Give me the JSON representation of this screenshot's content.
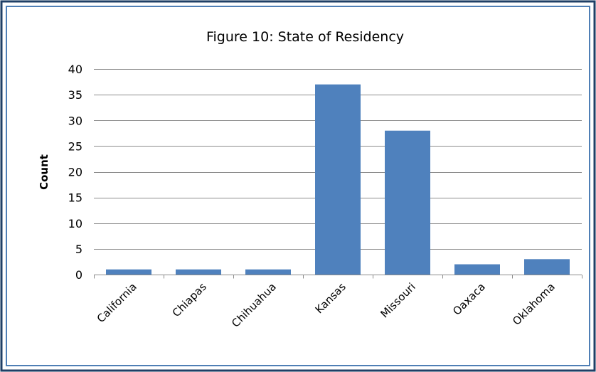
{
  "chart_data": {
    "type": "bar",
    "title": "Figure 10: State of Residency",
    "xlabel": "",
    "ylabel": "Count",
    "categories": [
      "California",
      "Chiapas",
      "Chihuahua",
      "Kansas",
      "Missouri",
      "Oaxaca",
      "Oklahoma"
    ],
    "values": [
      1,
      1,
      1,
      37,
      28,
      2,
      3
    ],
    "ylim": [
      0,
      40
    ],
    "yticks": [
      "0",
      "5",
      "10",
      "15",
      "20",
      "25",
      "30",
      "35",
      "40"
    ],
    "grid": true,
    "legend": "none",
    "colors": {
      "bar": "#4f81bd",
      "frame_outer": "#1f3f66",
      "frame_inner": "#4f7fb5"
    }
  }
}
